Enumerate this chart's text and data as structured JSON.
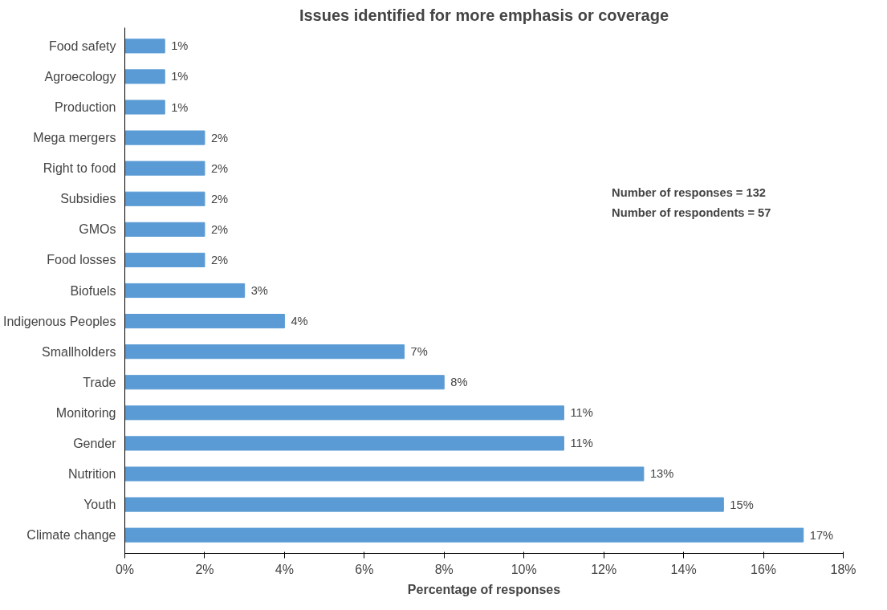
{
  "chart_data": {
    "type": "bar",
    "orientation": "horizontal",
    "title": "Issues identified for more emphasis or coverage",
    "xlabel": "Percentage of responses",
    "categories": [
      "Food safety",
      "Agroecology",
      "Production",
      "Mega mergers",
      "Right to food",
      "Subsidies",
      "GMOs",
      "Food losses",
      "Biofuels",
      "Indigenous Peoples",
      "Smallholders",
      "Trade",
      "Monitoring",
      "Gender",
      "Nutrition",
      "Youth",
      "Climate change"
    ],
    "values": [
      1,
      1,
      1,
      2,
      2,
      2,
      2,
      2,
      3,
      4,
      7,
      8,
      11,
      11,
      13,
      15,
      17
    ],
    "value_labels": [
      "1%",
      "1%",
      "1%",
      "2%",
      "2%",
      "2%",
      "2%",
      "2%",
      "3%",
      "4%",
      "7%",
      "8%",
      "11%",
      "11%",
      "13%",
      "15%",
      "17%"
    ],
    "color": "#5b9bd5",
    "xlim": [
      0,
      18
    ],
    "xticks": [
      {
        "value": 0,
        "label": "0%"
      },
      {
        "value": 2,
        "label": "2%"
      },
      {
        "value": 4,
        "label": "4%"
      },
      {
        "value": 6,
        "label": "6%"
      },
      {
        "value": 8,
        "label": "8%"
      },
      {
        "value": 10,
        "label": "10%"
      },
      {
        "value": 12,
        "label": "12%"
      },
      {
        "value": 14,
        "label": "14%"
      },
      {
        "value": 16,
        "label": "16%"
      },
      {
        "value": 18,
        "label": "18%"
      }
    ],
    "annotations": [
      "Number of responses = 132",
      "Number of respondents = 57"
    ]
  }
}
